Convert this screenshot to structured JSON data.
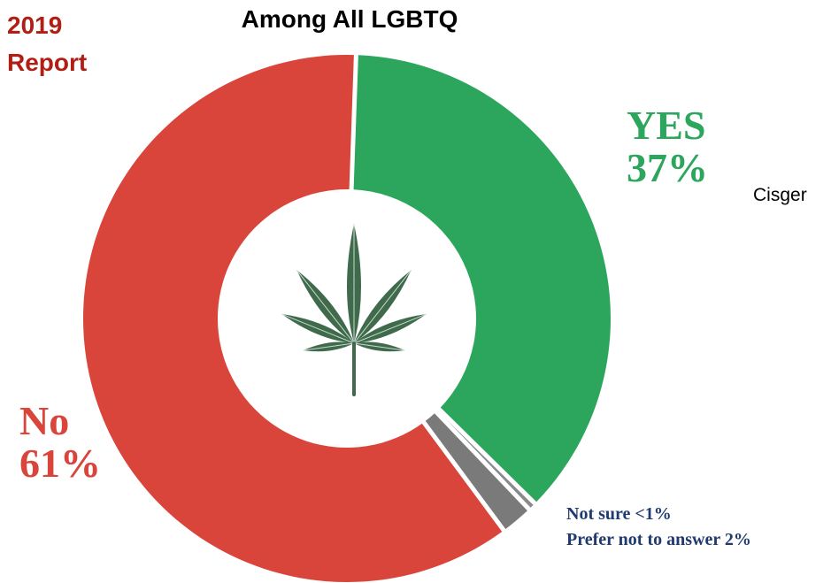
{
  "report_label_line1": "2019",
  "report_label_line2": "Report",
  "side_note": "Cisger",
  "center_icon": "cannabis-leaf-icon",
  "chart_data": {
    "type": "pie",
    "title": "Among All LGBTQ",
    "donut": true,
    "categories": [
      "YES",
      "Not sure",
      "Prefer not to answer",
      "No"
    ],
    "values": [
      37,
      0.5,
      2,
      61
    ],
    "labels": {
      "yes_name": "YES",
      "yes_value": "37%",
      "no_name": "No",
      "no_value": "61%",
      "not_sure": "Not sure <1%",
      "prefer_not": "Prefer not to answer 2%"
    },
    "colors": {
      "yes": "#2ca65d",
      "not_sure": "#8a8a8a",
      "prefer_not": "#7a7a7a",
      "no": "#d9453a",
      "leaf": "#3f6b4c",
      "small_text": "#1f3a6e",
      "report": "#b01e14"
    }
  }
}
